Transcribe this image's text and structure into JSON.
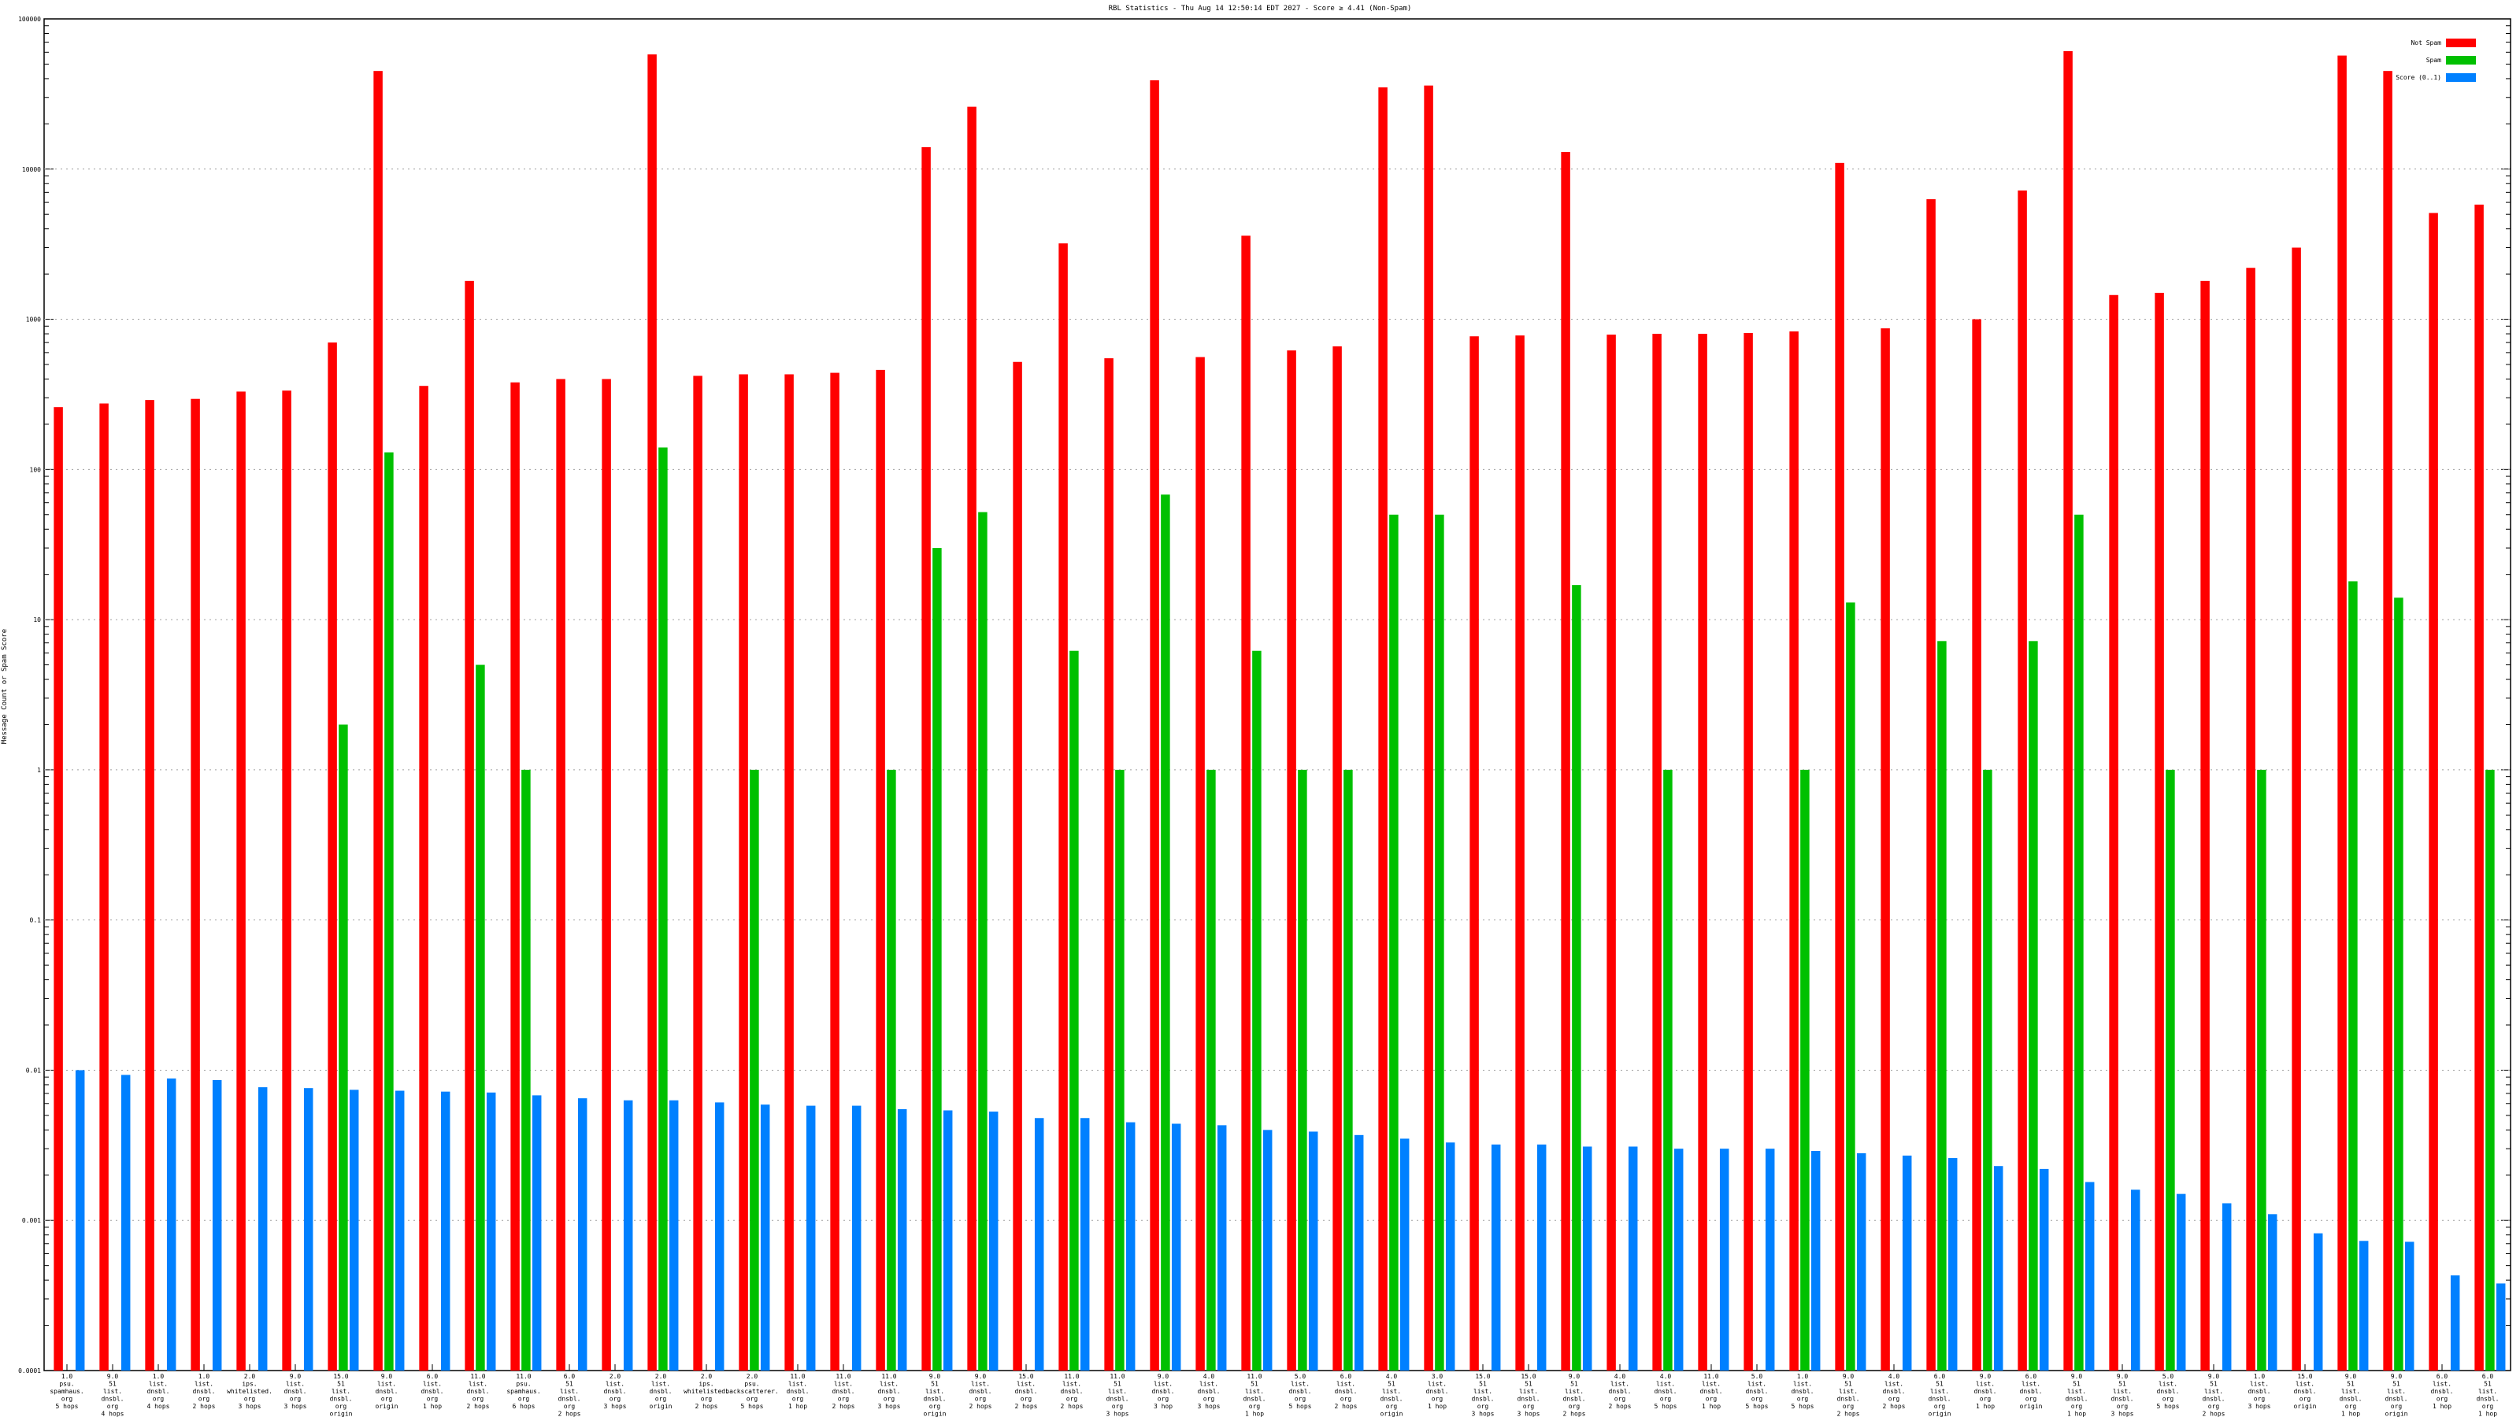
{
  "chart_data": {
    "type": "bar",
    "title": "RBL Statistics - Thu Aug 14 12:50:14 EDT 2027 - Score ≥ 4.41 (Non-Spam)",
    "xlabel": "",
    "ylabel": "Message Count or Spam Score",
    "yscale": "log",
    "ylim": [
      0.0001,
      100000
    ],
    "yticks": [
      "0.0001",
      "0.001",
      "0.01",
      "0.1",
      "1",
      "10",
      "100",
      "1000",
      "10000",
      "100000"
    ],
    "grid": true,
    "legend_position": "top-right",
    "categories": [
      [
        "1.0",
        "psu.",
        "spamhaus.",
        "org",
        "5 hops"
      ],
      [
        "9.0",
        "51",
        "list.",
        "dnsbl.",
        "org",
        "4 hops"
      ],
      [
        "1.0",
        "list.",
        "dnsbl.",
        "org",
        "4 hops"
      ],
      [
        "1.0",
        "list.",
        "dnsbl.",
        "org",
        "2 hops"
      ],
      [
        "2.0",
        "ips.",
        "whitelisted.",
        "org",
        "3 hops"
      ],
      [
        "9.0",
        "list.",
        "dnsbl.",
        "org",
        "3 hops"
      ],
      [
        "15.0",
        "51",
        "list.",
        "dnsbl.",
        "org",
        "origin"
      ],
      [
        "9.0",
        "list.",
        "dnsbl.",
        "org",
        "origin"
      ],
      [
        "6.0",
        "list.",
        "dnsbl.",
        "org",
        "1 hop"
      ],
      [
        "11.0",
        "list.",
        "dnsbl.",
        "org",
        "2 hops"
      ],
      [
        "11.0",
        "psu.",
        "spamhaus.",
        "org",
        "6 hops"
      ],
      [
        "6.0",
        "51",
        "list.",
        "dnsbl.",
        "org",
        "2 hops"
      ],
      [
        "2.0",
        "list.",
        "dnsbl.",
        "org",
        "3 hops"
      ],
      [
        "2.0",
        "list.",
        "dnsbl.",
        "org",
        "origin"
      ],
      [
        "2.0",
        "ips.",
        "whitelisted.",
        "org",
        "2 hops"
      ],
      [
        "2.0",
        "psu.",
        "backscatterer.",
        "org",
        "5 hops"
      ],
      [
        "11.0",
        "list.",
        "dnsbl.",
        "org",
        "1 hop"
      ],
      [
        "11.0",
        "list.",
        "dnsbl.",
        "org",
        "2 hops"
      ],
      [
        "11.0",
        "list.",
        "dnsbl.",
        "org",
        "3 hops"
      ],
      [
        "9.0",
        "51",
        "list.",
        "dnsbl.",
        "org",
        "origin"
      ],
      [
        "9.0",
        "list.",
        "dnsbl.",
        "org",
        "2 hops"
      ],
      [
        "15.0",
        "list.",
        "dnsbl.",
        "org",
        "2 hops"
      ],
      [
        "11.0",
        "list.",
        "dnsbl.",
        "org",
        "2 hops"
      ],
      [
        "11.0",
        "51",
        "list.",
        "dnsbl.",
        "org",
        "3 hops"
      ],
      [
        "9.0",
        "list.",
        "dnsbl.",
        "org",
        "3 hop"
      ],
      [
        "4.0",
        "list.",
        "dnsbl.",
        "org",
        "3 hops"
      ],
      [
        "11.0",
        "51",
        "list.",
        "dnsbl.",
        "org",
        "1 hop"
      ],
      [
        "5.0",
        "list.",
        "dnsbl.",
        "org",
        "5 hops"
      ],
      [
        "6.0",
        "list.",
        "dnsbl.",
        "org",
        "2 hops"
      ],
      [
        "4.0",
        "51",
        "list.",
        "dnsbl.",
        "org",
        "origin"
      ],
      [
        "3.0",
        "list.",
        "dnsbl.",
        "org",
        "1 hop"
      ],
      [
        "15.0",
        "51",
        "list.",
        "dnsbl.",
        "org",
        "3 hops"
      ],
      [
        "15.0",
        "51",
        "list.",
        "dnsbl.",
        "org",
        "3 hops"
      ],
      [
        "9.0",
        "51",
        "list.",
        "dnsbl.",
        "org",
        "2 hops"
      ],
      [
        "4.0",
        "list.",
        "dnsbl.",
        "org",
        "2 hops"
      ],
      [
        "4.0",
        "list.",
        "dnsbl.",
        "org",
        "5 hops"
      ],
      [
        "11.0",
        "list.",
        "dnsbl.",
        "org",
        "1 hop"
      ],
      [
        "5.0",
        "list.",
        "dnsbl.",
        "org",
        "5 hops"
      ],
      [
        "1.0",
        "list.",
        "dnsbl.",
        "org",
        "5 hops"
      ],
      [
        "9.0",
        "51",
        "list.",
        "dnsbl.",
        "org",
        "2 hops"
      ],
      [
        "4.0",
        "list.",
        "dnsbl.",
        "org",
        "2 hops"
      ],
      [
        "6.0",
        "51",
        "list.",
        "dnsbl.",
        "org",
        "origin"
      ],
      [
        "9.0",
        "list.",
        "dnsbl.",
        "org",
        "1 hop"
      ],
      [
        "6.0",
        "list.",
        "dnsbl.",
        "org",
        "origin"
      ],
      [
        "9.0",
        "51",
        "list.",
        "dnsbl.",
        "org",
        "1 hop"
      ],
      [
        "9.0",
        "51",
        "list.",
        "dnsbl.",
        "org",
        "3 hops"
      ],
      [
        "5.0",
        "list.",
        "dnsbl.",
        "org",
        "5 hops"
      ],
      [
        "9.0",
        "51",
        "list.",
        "dnsbl.",
        "org",
        "2 hops"
      ],
      [
        "1.0",
        "list.",
        "dnsbl.",
        "org",
        "3 hops"
      ],
      [
        "15.0",
        "list.",
        "dnsbl.",
        "org",
        "origin"
      ],
      [
        "9.0",
        "51",
        "list.",
        "dnsbl.",
        "org",
        "1 hop"
      ],
      [
        "9.0",
        "51",
        "list.",
        "dnsbl.",
        "org",
        "origin"
      ],
      [
        "6.0",
        "list.",
        "dnsbl.",
        "org",
        "1 hop"
      ],
      [
        "6.0",
        "51",
        "list.",
        "dnsbl.",
        "org",
        "1 hop"
      ]
    ],
    "series": [
      {
        "name": "Not Spam",
        "color": "#ff0000",
        "values": [
          260,
          275,
          290,
          295,
          330,
          335,
          700,
          45000,
          360,
          1800,
          380,
          400,
          400,
          58000,
          420,
          430,
          430,
          440,
          460,
          14000,
          26000,
          520,
          3200,
          550,
          39000,
          560,
          3600,
          620,
          660,
          35000,
          36000,
          770,
          780,
          13000,
          790,
          800,
          800,
          810,
          830,
          11000,
          870,
          6300,
          1000,
          7200,
          61000,
          1450,
          1500,
          1800,
          2200,
          3000,
          57000,
          45000,
          5100,
          5800
        ]
      },
      {
        "name": "Spam",
        "color": "#00c000",
        "values": [
          null,
          null,
          null,
          null,
          null,
          null,
          2,
          130,
          null,
          5,
          1,
          null,
          null,
          140,
          null,
          1,
          null,
          null,
          1,
          30,
          52,
          null,
          6.2,
          1,
          68,
          1,
          6.2,
          1,
          1,
          50,
          50,
          null,
          null,
          17,
          null,
          1,
          null,
          null,
          1,
          13,
          null,
          7.2,
          1,
          7.2,
          50,
          null,
          1,
          null,
          1,
          null,
          18,
          14,
          null,
          1
        ]
      },
      {
        "name": "Score (0..1)",
        "color": "#0080ff",
        "values": [
          0.01,
          0.0093,
          0.0088,
          0.0086,
          0.0077,
          0.0076,
          0.0074,
          0.0073,
          0.0072,
          0.0071,
          0.0068,
          0.0065,
          0.0063,
          0.0063,
          0.0061,
          0.0059,
          0.0058,
          0.0058,
          0.0055,
          0.0054,
          0.0053,
          0.0048,
          0.0048,
          0.0045,
          0.0044,
          0.0043,
          0.004,
          0.0039,
          0.0037,
          0.0035,
          0.0033,
          0.0032,
          0.0032,
          0.0031,
          0.0031,
          0.003,
          0.003,
          0.003,
          0.0029,
          0.0028,
          0.0027,
          0.0026,
          0.0023,
          0.0022,
          0.0018,
          0.0016,
          0.0015,
          0.0013,
          0.0011,
          0.00082,
          0.00073,
          0.00072,
          0.00043,
          0.00038
        ]
      }
    ]
  }
}
